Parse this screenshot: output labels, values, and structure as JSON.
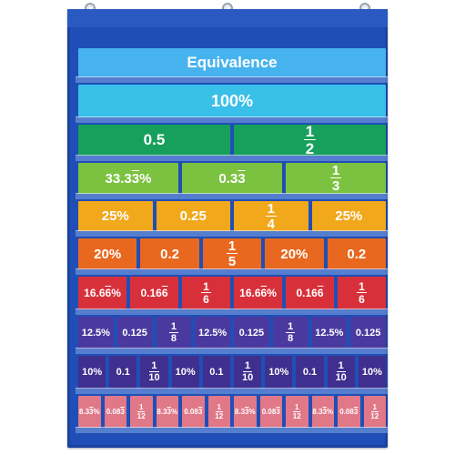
{
  "title": "Equivalence",
  "rows": [
    {
      "color": "#47b3ee",
      "height": 32,
      "font": 17,
      "cards": [
        {
          "text": "Equivalence"
        }
      ]
    },
    {
      "color": "#39c0e8",
      "height": 36,
      "font": 18,
      "cards": [
        {
          "text": "100%"
        }
      ]
    },
    {
      "color": "#17a05c",
      "height": 34,
      "font": 17,
      "cards": [
        {
          "text": "0.5"
        },
        {
          "num": "1",
          "den": "2"
        }
      ]
    },
    {
      "color": "#7cc241",
      "height": 34,
      "font": 15,
      "cards": [
        {
          "text": "33.3%",
          "over": "3"
        },
        {
          "text": "0.3",
          "over": "3"
        },
        {
          "num": "1",
          "den": "3"
        }
      ]
    },
    {
      "color": "#f2a81b",
      "height": 33,
      "font": 15,
      "cards": [
        {
          "text": "25%"
        },
        {
          "text": "0.25"
        },
        {
          "num": "1",
          "den": "4"
        },
        {
          "text": "25%"
        }
      ]
    },
    {
      "color": "#e8681f",
      "height": 34,
      "font": 15,
      "cards": [
        {
          "text": "20%"
        },
        {
          "text": "0.2"
        },
        {
          "num": "1",
          "den": "5"
        },
        {
          "text": "20%"
        },
        {
          "text": "0.2"
        }
      ]
    },
    {
      "color": "#d8303a",
      "height": 36,
      "font": 12,
      "cards": [
        {
          "text": "16.6%",
          "over": "6"
        },
        {
          "text": "0.16",
          "over": "6"
        },
        {
          "num": "1",
          "den": "6"
        },
        {
          "text": "16.6%",
          "over": "6"
        },
        {
          "text": "0.16",
          "over": "6"
        },
        {
          "num": "1",
          "den": "6"
        }
      ]
    },
    {
      "color": "#4a3aa0",
      "height": 35,
      "font": 11,
      "cards": [
        {
          "text": "12.5%"
        },
        {
          "text": "0.125"
        },
        {
          "num": "1",
          "den": "8"
        },
        {
          "text": "12.5%"
        },
        {
          "text": "0.125"
        },
        {
          "num": "1",
          "den": "8"
        },
        {
          "text": "12.5%"
        },
        {
          "text": "0.125"
        }
      ]
    },
    {
      "color": "#3f2f8e",
      "height": 36,
      "font": 11,
      "cards": [
        {
          "text": "10%"
        },
        {
          "text": "0.1"
        },
        {
          "num": "1",
          "den": "10"
        },
        {
          "text": "10%"
        },
        {
          "text": "0.1"
        },
        {
          "num": "1",
          "den": "10"
        },
        {
          "text": "10%"
        },
        {
          "text": "0.1"
        },
        {
          "num": "1",
          "den": "10"
        },
        {
          "text": "10%"
        }
      ]
    },
    {
      "color": "#e07888",
      "height": 35,
      "font": 8,
      "cards": [
        {
          "text": "8.3%",
          "over": "3"
        },
        {
          "text": "0.08",
          "over": "3"
        },
        {
          "num": "1",
          "den": "12"
        },
        {
          "text": "8.3%",
          "over": "3"
        },
        {
          "text": "0.08",
          "over": "3"
        },
        {
          "num": "1",
          "den": "12"
        },
        {
          "text": "8.3%",
          "over": "3"
        },
        {
          "text": "0.08",
          "over": "3"
        },
        {
          "num": "1",
          "den": "12"
        },
        {
          "text": "8.3%",
          "over": "3"
        },
        {
          "text": "0.08",
          "over": "3"
        },
        {
          "num": "1",
          "den": "12"
        }
      ]
    }
  ]
}
